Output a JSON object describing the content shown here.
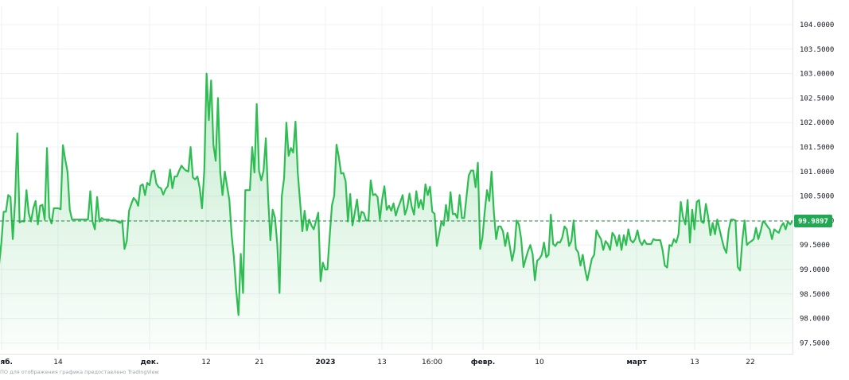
{
  "chart_data": {
    "type": "area",
    "title": "",
    "xlabel": "",
    "ylabel": "",
    "ylim": [
      97.3,
      104.4
    ],
    "y_ticks": [
      "104.0000",
      "103.5000",
      "103.0000",
      "102.5000",
      "102.0000",
      "101.5000",
      "101.0000",
      "100.5000",
      "100.0000",
      "99.5000",
      "99.0000",
      "98.5000",
      "98.0000",
      "97.5000"
    ],
    "x_tick_labels": [
      "нояб.",
      "14",
      "дек.",
      "12",
      "21",
      "2023",
      "13",
      "16:00",
      "февр.",
      "10",
      "март",
      "13",
      "22"
    ],
    "x_tick_bold": [
      true,
      false,
      true,
      false,
      false,
      true,
      false,
      false,
      true,
      false,
      true,
      false,
      false
    ],
    "last_value": 99.9897,
    "last_value_label": "99.9897",
    "line_color": "#2fbd53",
    "area_color": "#2fbd53",
    "values": [
      99.98,
      99.1,
      99.55,
      100.18,
      100.18,
      100.52,
      100.48,
      99.62,
      100.4,
      101.78,
      99.96,
      99.99,
      99.98,
      100.62,
      100.15,
      99.98,
      100.25,
      100.4,
      99.92,
      100.3,
      100.32,
      100.02,
      101.48,
      100.07,
      99.94,
      100.25,
      100.25,
      100.25,
      100.23,
      101.54,
      101.25,
      101.0,
      100.22,
      100.02,
      100.02,
      100.02,
      100.02,
      100.02,
      100.02,
      100.02,
      100.02,
      100.6,
      99.98,
      99.82,
      100.48,
      99.98,
      100.05,
      100.02,
      100.02,
      100.02,
      100.0,
      100.0,
      100.0,
      99.98,
      99.95,
      100.0,
      99.42,
      99.58,
      100.2,
      100.34,
      100.46,
      100.41,
      100.3,
      100.71,
      100.74,
      100.52,
      100.77,
      100.72,
      101.0,
      101.02,
      100.75,
      100.68,
      100.66,
      100.53,
      100.64,
      100.7,
      101.04,
      100.66,
      100.9,
      100.9,
      101.02,
      101.12,
      101.06,
      101.02,
      101.0,
      101.5,
      100.88,
      100.84,
      100.9,
      100.66,
      100.25,
      101.02,
      103.0,
      102.05,
      102.86,
      101.55,
      101.22,
      102.5,
      100.98,
      100.52,
      101.0,
      100.7,
      100.42,
      99.7,
      99.24,
      98.58,
      98.07,
      99.32,
      98.52,
      100.62,
      100.62,
      100.62,
      101.5,
      100.98,
      102.38,
      101.02,
      100.82,
      101.02,
      101.68,
      100.46,
      99.6,
      100.22,
      100.06,
      99.52,
      98.52,
      100.5,
      100.86,
      102.0,
      101.32,
      101.48,
      101.39,
      102.02,
      100.98,
      100.39,
      99.78,
      100.2,
      99.8,
      100.02,
      99.9,
      99.82,
      99.99,
      100.16,
      98.76,
      99.14,
      99.0,
      99.0,
      99.68,
      100.31,
      100.51,
      101.55,
      101.3,
      100.96,
      100.97,
      100.8,
      99.98,
      100.54,
      99.9,
      100.16,
      100.43,
      99.98,
      100.18,
      100.15,
      100.0,
      100.0,
      100.82,
      100.52,
      100.54,
      100.48,
      100.02,
      100.43,
      100.7,
      100.22,
      100.3,
      100.2,
      100.35,
      100.1,
      100.26,
      100.38,
      100.52,
      100.12,
      100.26,
      100.55,
      100.28,
      100.12,
      100.6,
      100.26,
      100.42,
      100.23,
      100.74,
      100.52,
      100.69,
      100.18,
      100.14,
      99.48,
      99.72,
      99.98,
      99.9,
      100.32,
      100.0,
      100.58,
      100.13,
      100.14,
      100.05,
      100.52,
      100.05,
      100.05,
      100.48,
      100.92,
      101.02,
      101.02,
      100.68,
      101.18,
      99.42,
      99.65,
      100.18,
      100.62,
      100.4,
      101.0,
      100.18,
      99.62,
      99.88,
      99.88,
      99.78,
      99.48,
      99.75,
      99.48,
      99.18,
      99.4,
      100.0,
      99.92,
      99.62,
      99.05,
      99.22,
      99.38,
      99.5,
      99.32,
      98.78,
      99.18,
      99.22,
      99.3,
      99.55,
      99.25,
      99.3,
      100.12,
      99.52,
      99.48,
      99.56,
      99.55,
      99.65,
      99.88,
      99.82,
      99.48,
      99.58,
      100.0,
      99.42,
      99.35,
      99.08,
      99.3,
      99.0,
      98.78,
      99.0,
      99.22,
      99.3,
      99.8,
      99.7,
      99.62,
      99.4,
      99.58,
      99.52,
      99.4,
      99.75,
      99.68,
      99.48,
      99.7,
      99.4,
      99.7,
      99.5,
      99.82,
      99.6,
      99.55,
      99.62,
      99.8,
      99.58,
      99.5,
      99.6,
      99.52,
      99.52,
      99.52,
      99.62,
      99.6,
      99.6,
      99.6,
      99.4,
      99.08,
      99.04,
      99.5,
      99.48,
      99.62,
      99.55,
      99.72,
      100.38,
      100.06,
      99.92,
      100.42,
      99.55,
      100.22,
      99.82,
      100.38,
      100.42,
      99.98,
      99.95,
      100.34,
      100.08,
      99.7,
      99.95,
      99.72,
      100.02,
      99.82,
      99.62,
      99.44,
      99.34,
      99.8,
      100.02,
      100.02,
      100.0,
      99.05,
      98.98,
      99.6,
      100.0,
      99.5,
      99.55,
      99.58,
      99.62,
      99.85,
      99.62,
      99.78,
      99.98,
      99.95,
      99.88,
      99.82,
      99.62,
      99.82,
      99.78,
      99.75,
      99.88,
      99.95,
      99.82,
      99.98,
      99.92,
      99.99
    ]
  },
  "credit_text": "ПО для отображения графика предоставлено TradingView"
}
